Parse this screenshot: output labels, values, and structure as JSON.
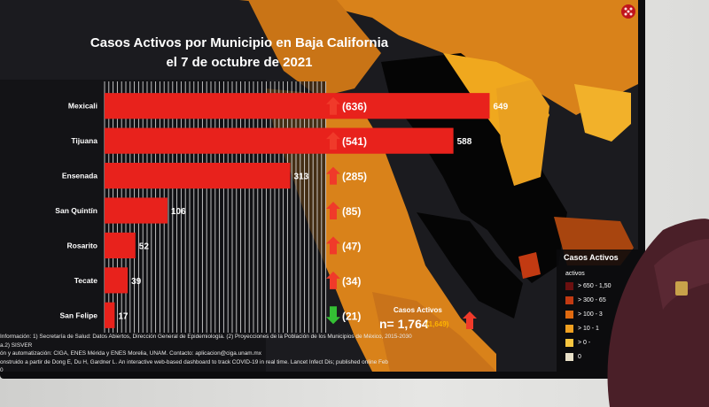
{
  "chart_data": {
    "type": "bar",
    "orientation": "horizontal",
    "title": "Casos Activos por Municipio en Baja California",
    "subtitle": "el 7 de octubre de 2021",
    "categories": [
      "Mexicali",
      "Tijuana",
      "Ensenada",
      "San Quintín",
      "Rosarito",
      "Tecate",
      "San Felipe"
    ],
    "values": [
      649,
      588,
      313,
      106,
      52,
      39,
      17
    ],
    "value_labels": [
      "649",
      "588",
      "313",
      "106",
      "52",
      "39",
      "17"
    ],
    "previous_labels": [
      "(636)",
      "(541)",
      "(285)",
      "(85)",
      "(47)",
      "(34)",
      "(21)"
    ],
    "trend": [
      "up",
      "up",
      "up",
      "up",
      "up",
      "up",
      "down"
    ],
    "xlim": [
      0,
      720
    ],
    "bar_color": "#e8221c",
    "trend_up_color": "#f03a2a",
    "trend_down_color": "#34c034"
  },
  "summary": {
    "label": "Casos Activos",
    "value": "n= 1,764",
    "previous": "(1,649)"
  },
  "legend": {
    "title": "Casos Activos",
    "subtitle": "activos",
    "items": [
      {
        "label": "> 650 - 1,50",
        "color": "#6b1010"
      },
      {
        "label": "> 300 - 65",
        "color": "#c23a12"
      },
      {
        "label": "> 100 - 3",
        "color": "#e06a10"
      },
      {
        "label": "> 10 - 1",
        "color": "#f0a020"
      },
      {
        "label": "> 0 -",
        "color": "#f8c640"
      },
      {
        "label": "0",
        "color": "#e8e0c8"
      }
    ]
  },
  "footer": [
    "Información: 1) Secretaría de Salud: Datos Abiertos, Dirección General de Epidemiología. (2) Proyecciones de la Población de los Municipios de México, 2015-2030",
    "a.2) SISVER",
    "ón y automatización: CIGA, ENES Mérida y ENES Morelia, UNAM. Contacto: aplicacion@ciga.unam.mx",
    "onstruido a partir de Dong E, Du H, Gardner L. An interactive web-based dashboard to track COVID-19 in real time. Lancet Infect Dis; published online Feb",
    "0"
  ],
  "colors": {
    "map_orange": "#d9821a",
    "map_dark": "#060606",
    "map_yellow": "#f0a81e",
    "map_deep": "#a8450f"
  }
}
